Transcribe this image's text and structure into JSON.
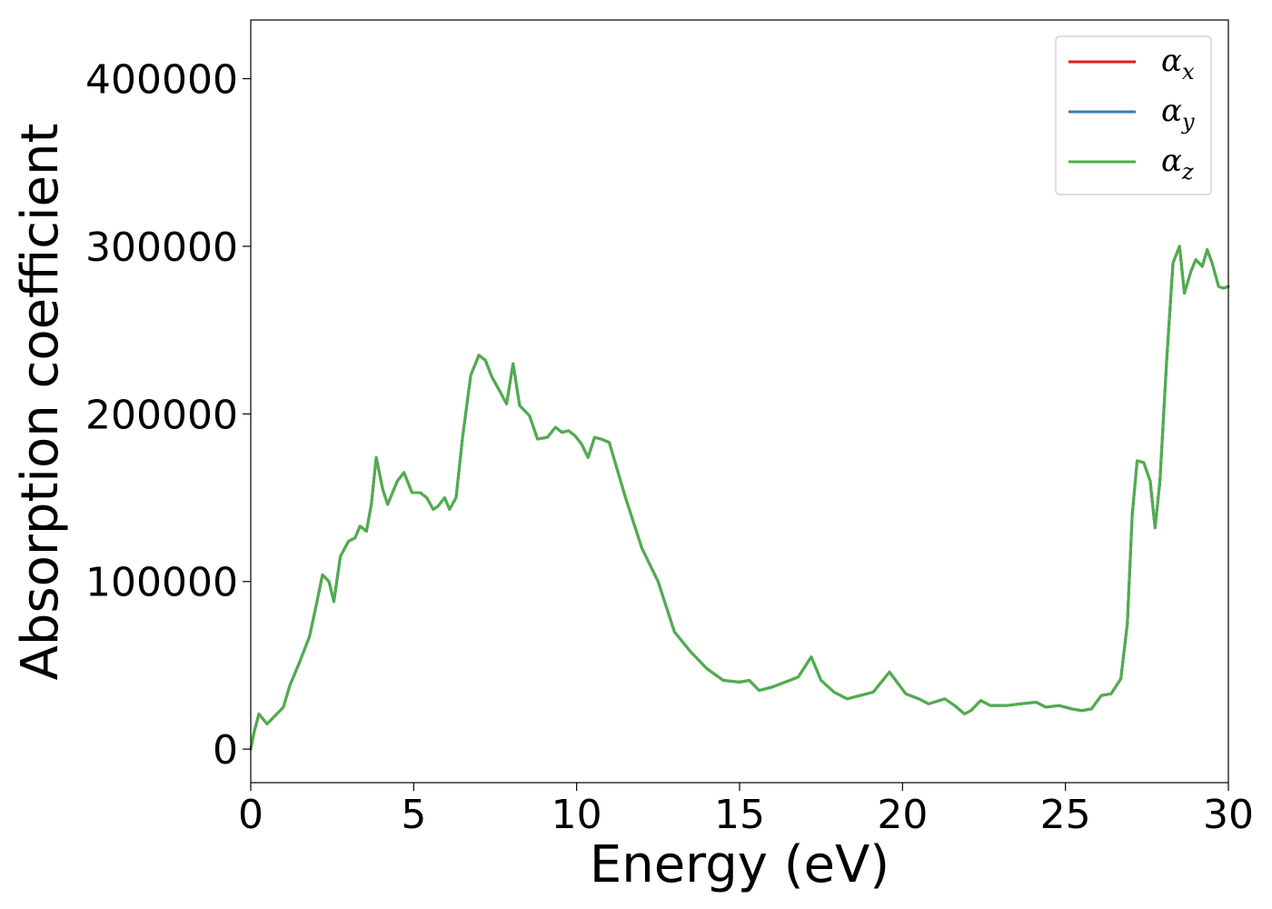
{
  "chart_data": {
    "type": "line",
    "title": "",
    "xlabel": "Energy (eV)",
    "ylabel": "Absorption coefficient",
    "xlim": [
      0,
      30
    ],
    "ylim": [
      -20000,
      435000
    ],
    "xticks": [
      0,
      5,
      10,
      15,
      20,
      25,
      30
    ],
    "xtick_labels": [
      "0",
      "5",
      "10",
      "15",
      "20",
      "25",
      "30"
    ],
    "yticks": [
      0,
      100000,
      200000,
      300000,
      400000
    ],
    "ytick_labels": [
      "0",
      "100000",
      "200000",
      "300000",
      "400000"
    ],
    "grid": false,
    "legend_position": "top-right",
    "x": [
      0.0,
      0.1,
      0.25,
      0.5,
      0.8,
      1.0,
      1.2,
      1.5,
      1.8,
      2.0,
      2.2,
      2.4,
      2.55,
      2.75,
      3.0,
      3.2,
      3.35,
      3.55,
      3.7,
      3.85,
      4.05,
      4.2,
      4.5,
      4.7,
      4.95,
      5.2,
      5.4,
      5.6,
      5.75,
      5.95,
      6.1,
      6.3,
      6.5,
      6.75,
      7.0,
      7.2,
      7.4,
      7.6,
      7.85,
      8.05,
      8.25,
      8.55,
      8.8,
      9.1,
      9.35,
      9.55,
      9.75,
      9.95,
      10.15,
      10.35,
      10.55,
      10.75,
      11.0,
      11.5,
      12.0,
      12.5,
      13.0,
      13.5,
      14.0,
      14.5,
      15.0,
      15.3,
      15.6,
      16.0,
      16.4,
      16.8,
      17.2,
      17.5,
      17.9,
      18.3,
      18.7,
      19.1,
      19.6,
      20.1,
      20.5,
      20.8,
      21.3,
      21.6,
      21.9,
      22.1,
      22.4,
      22.7,
      23.2,
      23.6,
      24.1,
      24.4,
      24.8,
      25.2,
      25.5,
      25.8,
      26.1,
      26.4,
      26.7,
      26.9,
      27.05,
      27.2,
      27.4,
      27.6,
      27.75,
      27.9,
      28.1,
      28.3,
      28.5,
      28.65,
      28.85,
      29.0,
      29.2,
      29.35,
      29.5,
      29.7,
      29.85,
      30.0
    ],
    "series": [
      {
        "name": "α_x",
        "color": "#e41a1c",
        "values": [
          0,
          10000,
          21000,
          15000,
          21000,
          25000,
          38000,
          52000,
          67000,
          85000,
          104000,
          100000,
          88000,
          115000,
          124000,
          126000,
          133000,
          130000,
          146000,
          174000,
          155000,
          146000,
          160000,
          165000,
          153000,
          153000,
          150000,
          143000,
          145000,
          150000,
          143000,
          150000,
          186000,
          223000,
          235000,
          232000,
          222000,
          215000,
          206000,
          230000,
          205000,
          199000,
          185000,
          186000,
          192000,
          189000,
          190000,
          187000,
          182000,
          174000,
          186000,
          185000,
          183000,
          150000,
          120000,
          100000,
          70000,
          58000,
          48000,
          41000,
          40000,
          41000,
          35000,
          37000,
          40000,
          43000,
          55000,
          41000,
          34000,
          30000,
          32000,
          34000,
          46000,
          33000,
          30000,
          27000,
          30000,
          26000,
          21000,
          23000,
          29000,
          26000,
          26000,
          27000,
          28000,
          25000,
          26000,
          24000,
          23000,
          24000,
          32000,
          33000,
          42000,
          75000,
          140000,
          172000,
          171000,
          160000,
          132000,
          160000,
          230000,
          290000,
          300000,
          272000,
          285000,
          292000,
          288000,
          298000,
          290000,
          276000,
          275000,
          276000
        ]
      },
      {
        "name": "α_y",
        "color": "#377eb8",
        "values": [
          0,
          10000,
          21000,
          15000,
          21000,
          25000,
          38000,
          52000,
          67000,
          85000,
          104000,
          100000,
          88000,
          115000,
          124000,
          126000,
          133000,
          130000,
          146000,
          174000,
          155000,
          146000,
          160000,
          165000,
          153000,
          153000,
          150000,
          143000,
          145000,
          150000,
          143000,
          150000,
          186000,
          223000,
          235000,
          232000,
          222000,
          215000,
          206000,
          230000,
          205000,
          199000,
          185000,
          186000,
          192000,
          189000,
          190000,
          187000,
          182000,
          174000,
          186000,
          185000,
          183000,
          150000,
          120000,
          100000,
          70000,
          58000,
          48000,
          41000,
          40000,
          41000,
          35000,
          37000,
          40000,
          43000,
          55000,
          41000,
          34000,
          30000,
          32000,
          34000,
          46000,
          33000,
          30000,
          27000,
          30000,
          26000,
          21000,
          23000,
          29000,
          26000,
          26000,
          27000,
          28000,
          25000,
          26000,
          24000,
          23000,
          24000,
          32000,
          33000,
          42000,
          75000,
          140000,
          172000,
          171000,
          160000,
          132000,
          160000,
          230000,
          290000,
          300000,
          272000,
          285000,
          292000,
          288000,
          298000,
          290000,
          276000,
          275000,
          276000
        ]
      },
      {
        "name": "α_z",
        "color": "#4daf4a",
        "values": [
          0,
          10000,
          21000,
          15000,
          21000,
          25000,
          38000,
          52000,
          67000,
          85000,
          104000,
          100000,
          88000,
          115000,
          124000,
          126000,
          133000,
          130000,
          146000,
          174000,
          155000,
          146000,
          160000,
          165000,
          153000,
          153000,
          150000,
          143000,
          145000,
          150000,
          143000,
          150000,
          186000,
          223000,
          235000,
          232000,
          222000,
          215000,
          206000,
          230000,
          205000,
          199000,
          185000,
          186000,
          192000,
          189000,
          190000,
          187000,
          182000,
          174000,
          186000,
          185000,
          183000,
          150000,
          120000,
          100000,
          70000,
          58000,
          48000,
          41000,
          40000,
          41000,
          35000,
          37000,
          40000,
          43000,
          55000,
          41000,
          34000,
          30000,
          32000,
          34000,
          46000,
          33000,
          30000,
          27000,
          30000,
          26000,
          21000,
          23000,
          29000,
          26000,
          26000,
          27000,
          28000,
          25000,
          26000,
          24000,
          23000,
          24000,
          32000,
          33000,
          42000,
          75000,
          140000,
          172000,
          171000,
          160000,
          132000,
          160000,
          230000,
          290000,
          300000,
          272000,
          285000,
          292000,
          288000,
          298000,
          290000,
          276000,
          275000,
          276000
        ]
      }
    ],
    "legend": [
      {
        "symbol": "α",
        "subscript": "x"
      },
      {
        "symbol": "α",
        "subscript": "y"
      },
      {
        "symbol": "α",
        "subscript": "z"
      }
    ]
  }
}
